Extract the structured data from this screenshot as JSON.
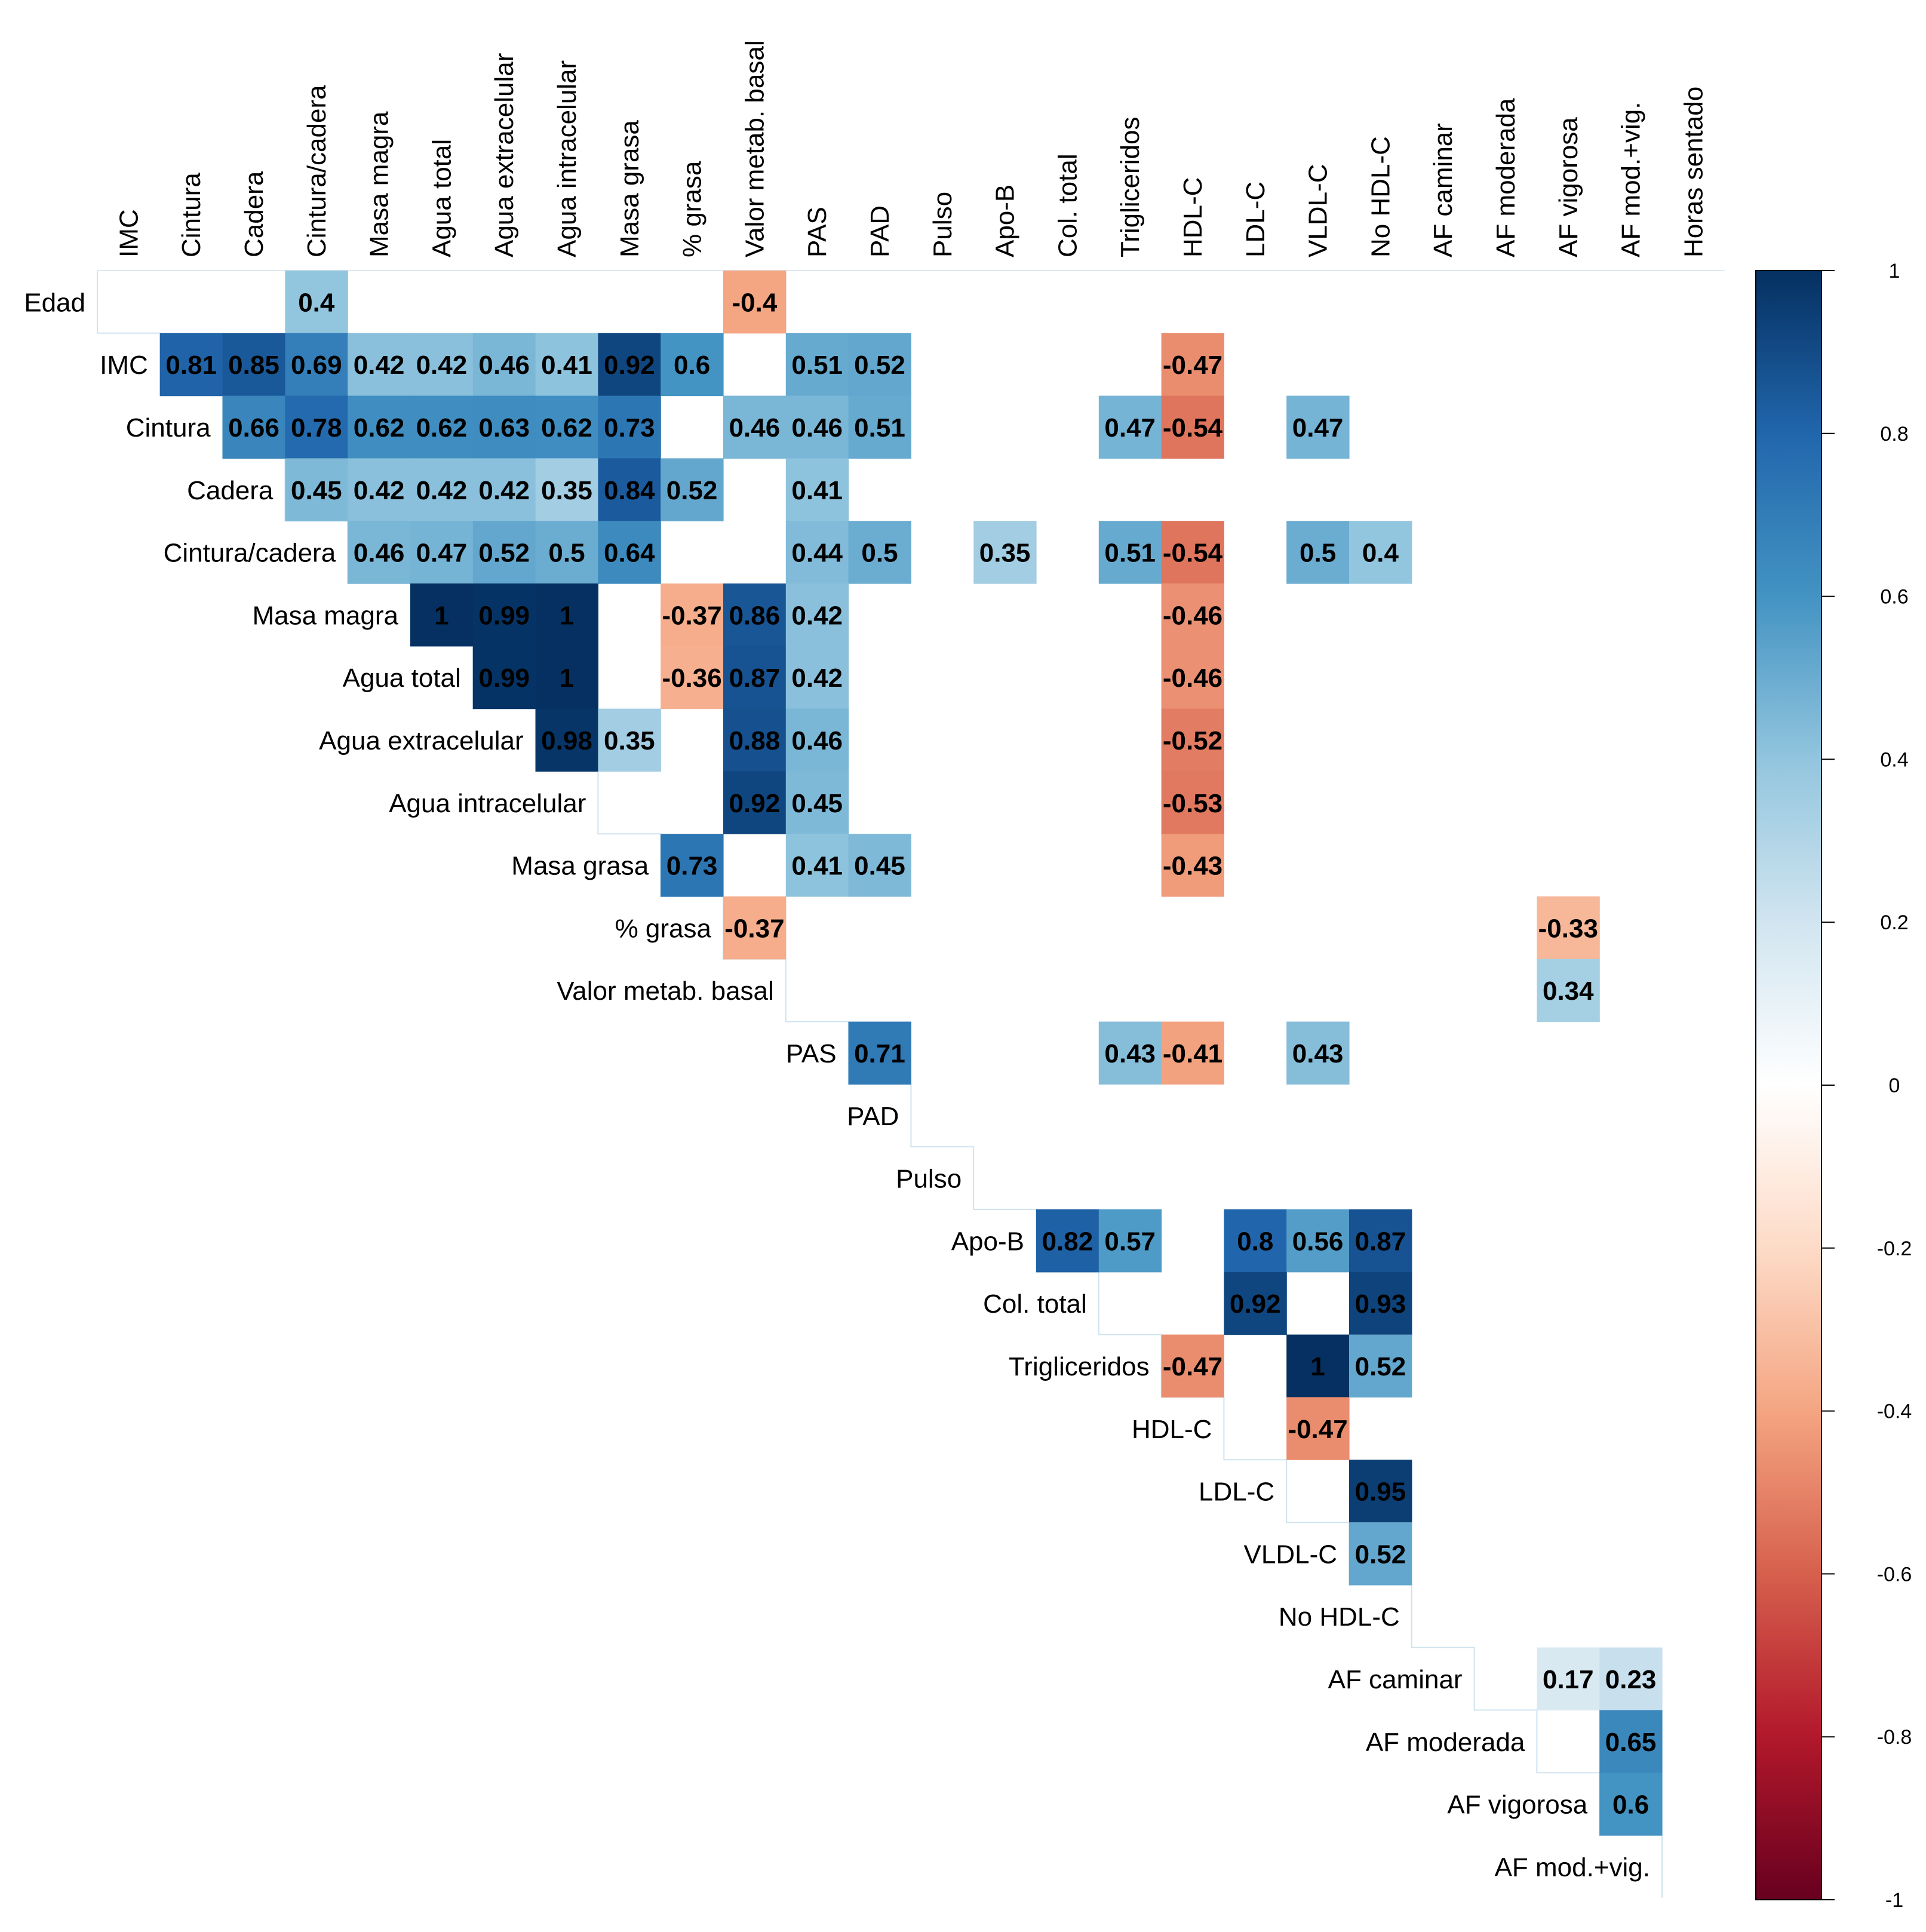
{
  "chart_data": {
    "type": "heatmap",
    "subtype": "correlation-matrix-upper-triangle",
    "title": "",
    "variables": [
      "Edad",
      "IMC",
      "Cintura",
      "Cadera",
      "Cintura/cadera",
      "Masa magra",
      "Agua total",
      "Agua extracelular",
      "Agua intracelular",
      "Masa grasa",
      "% grasa",
      "Valor metab. basal",
      "PAS",
      "PAD",
      "Pulso",
      "Apo-B",
      "Col. total",
      "Trigliceridos",
      "HDL-C",
      "LDL-C",
      "VLDL-C",
      "No HDL-C",
      "AF caminar",
      "AF moderada",
      "AF vigorosa",
      "AF mod.+vig.",
      "Horas sentado"
    ],
    "row_labels": [
      "Edad",
      "IMC",
      "Cintura",
      "Cadera",
      "Cintura/cadera",
      "Masa magra",
      "Agua total",
      "Agua extracelular",
      "Agua intracelular",
      "Masa grasa",
      "% grasa",
      "Valor metab. basal",
      "PAS",
      "PAD",
      "Pulso",
      "Apo-B",
      "Col. total",
      "Trigliceridos",
      "HDL-C",
      "LDL-C",
      "VLDL-C",
      "No HDL-C",
      "AF caminar",
      "AF moderada",
      "AF vigorosa",
      "AF mod.+vig."
    ],
    "column_labels": [
      "IMC",
      "Cintura",
      "Cadera",
      "Cintura/cadera",
      "Masa magra",
      "Agua total",
      "Agua extracelular",
      "Agua intracelular",
      "Masa grasa",
      "% grasa",
      "Valor metab. basal",
      "PAS",
      "PAD",
      "Pulso",
      "Apo-B",
      "Col. total",
      "Trigliceridos",
      "HDL-C",
      "LDL-C",
      "VLDL-C",
      "No HDL-C",
      "AF caminar",
      "AF moderada",
      "AF vigorosa",
      "AF mod.+vig.",
      "Horas sentado"
    ],
    "significant_correlations": [
      {
        "row": "Edad",
        "col": "Cintura/cadera",
        "r": 0.4,
        "label": "0.4"
      },
      {
        "row": "Edad",
        "col": "Valor metab. basal",
        "r": -0.4,
        "label": "-0.4"
      },
      {
        "row": "IMC",
        "col": "Cintura",
        "r": 0.81,
        "label": "0.81"
      },
      {
        "row": "IMC",
        "col": "Cadera",
        "r": 0.85,
        "label": "0.85"
      },
      {
        "row": "IMC",
        "col": "Cintura/cadera",
        "r": 0.69,
        "label": "0.69"
      },
      {
        "row": "IMC",
        "col": "Masa magra",
        "r": 0.42,
        "label": "0.42"
      },
      {
        "row": "IMC",
        "col": "Agua total",
        "r": 0.42,
        "label": "0.42"
      },
      {
        "row": "IMC",
        "col": "Agua extracelular",
        "r": 0.46,
        "label": "0.46"
      },
      {
        "row": "IMC",
        "col": "Agua intracelular",
        "r": 0.41,
        "label": "0.41"
      },
      {
        "row": "IMC",
        "col": "Masa grasa",
        "r": 0.92,
        "label": "0.92"
      },
      {
        "row": "IMC",
        "col": "% grasa",
        "r": 0.6,
        "label": "0.6"
      },
      {
        "row": "IMC",
        "col": "PAS",
        "r": 0.51,
        "label": "0.51"
      },
      {
        "row": "IMC",
        "col": "PAD",
        "r": 0.52,
        "label": "0.52"
      },
      {
        "row": "IMC",
        "col": "HDL-C",
        "r": -0.47,
        "label": "-0.47"
      },
      {
        "row": "Cintura",
        "col": "Cadera",
        "r": 0.66,
        "label": "0.66"
      },
      {
        "row": "Cintura",
        "col": "Cintura/cadera",
        "r": 0.78,
        "label": "0.78"
      },
      {
        "row": "Cintura",
        "col": "Masa magra",
        "r": 0.62,
        "label": "0.62"
      },
      {
        "row": "Cintura",
        "col": "Agua total",
        "r": 0.62,
        "label": "0.62"
      },
      {
        "row": "Cintura",
        "col": "Agua extracelular",
        "r": 0.63,
        "label": "0.63"
      },
      {
        "row": "Cintura",
        "col": "Agua intracelular",
        "r": 0.62,
        "label": "0.62"
      },
      {
        "row": "Cintura",
        "col": "Masa grasa",
        "r": 0.73,
        "label": "0.73"
      },
      {
        "row": "Cintura",
        "col": "Valor metab. basal",
        "r": 0.46,
        "label": "0.46"
      },
      {
        "row": "Cintura",
        "col": "PAS",
        "r": 0.46,
        "label": "0.46"
      },
      {
        "row": "Cintura",
        "col": "PAD",
        "r": 0.51,
        "label": "0.51"
      },
      {
        "row": "Cintura",
        "col": "Trigliceridos",
        "r": 0.47,
        "label": "0.47"
      },
      {
        "row": "Cintura",
        "col": "HDL-C",
        "r": -0.54,
        "label": "-0.54"
      },
      {
        "row": "Cintura",
        "col": "VLDL-C",
        "r": 0.47,
        "label": "0.47"
      },
      {
        "row": "Cadera",
        "col": "Cintura/cadera",
        "r": 0.45,
        "label": "0.45"
      },
      {
        "row": "Cadera",
        "col": "Masa magra",
        "r": 0.42,
        "label": "0.42"
      },
      {
        "row": "Cadera",
        "col": "Agua total",
        "r": 0.42,
        "label": "0.42"
      },
      {
        "row": "Cadera",
        "col": "Agua extracelular",
        "r": 0.42,
        "label": "0.42"
      },
      {
        "row": "Cadera",
        "col": "Agua intracelular",
        "r": 0.35,
        "label": "0.35"
      },
      {
        "row": "Cadera",
        "col": "Masa grasa",
        "r": 0.84,
        "label": "0.84"
      },
      {
        "row": "Cadera",
        "col": "% grasa",
        "r": 0.52,
        "label": "0.52"
      },
      {
        "row": "Cadera",
        "col": "PAS",
        "r": 0.41,
        "label": "0.41"
      },
      {
        "row": "Cintura/cadera",
        "col": "Masa magra",
        "r": 0.46,
        "label": "0.46"
      },
      {
        "row": "Cintura/cadera",
        "col": "Agua total",
        "r": 0.47,
        "label": "0.47"
      },
      {
        "row": "Cintura/cadera",
        "col": "Agua extracelular",
        "r": 0.52,
        "label": "0.52"
      },
      {
        "row": "Cintura/cadera",
        "col": "Agua intracelular",
        "r": 0.5,
        "label": "0.5"
      },
      {
        "row": "Cintura/cadera",
        "col": "Masa grasa",
        "r": 0.64,
        "label": "0.64"
      },
      {
        "row": "Cintura/cadera",
        "col": "PAS",
        "r": 0.44,
        "label": "0.44"
      },
      {
        "row": "Cintura/cadera",
        "col": "PAD",
        "r": 0.5,
        "label": "0.5"
      },
      {
        "row": "Cintura/cadera",
        "col": "Apo-B",
        "r": 0.35,
        "label": "0.35"
      },
      {
        "row": "Cintura/cadera",
        "col": "Trigliceridos",
        "r": 0.51,
        "label": "0.51"
      },
      {
        "row": "Cintura/cadera",
        "col": "HDL-C",
        "r": -0.54,
        "label": "-0.54"
      },
      {
        "row": "Cintura/cadera",
        "col": "VLDL-C",
        "r": 0.5,
        "label": "0.5"
      },
      {
        "row": "Cintura/cadera",
        "col": "No HDL-C",
        "r": 0.4,
        "label": "0.4"
      },
      {
        "row": "Masa magra",
        "col": "Agua total",
        "r": 1.0,
        "label": "1"
      },
      {
        "row": "Masa magra",
        "col": "Agua extracelular",
        "r": 0.99,
        "label": "0.99"
      },
      {
        "row": "Masa magra",
        "col": "Agua intracelular",
        "r": 1.0,
        "label": "1"
      },
      {
        "row": "Masa magra",
        "col": "% grasa",
        "r": -0.37,
        "label": "-0.37"
      },
      {
        "row": "Masa magra",
        "col": "Valor metab. basal",
        "r": 0.86,
        "label": "0.86"
      },
      {
        "row": "Masa magra",
        "col": "PAS",
        "r": 0.42,
        "label": "0.42"
      },
      {
        "row": "Masa magra",
        "col": "HDL-C",
        "r": -0.46,
        "label": "-0.46"
      },
      {
        "row": "Agua total",
        "col": "Agua extracelular",
        "r": 0.99,
        "label": "0.99"
      },
      {
        "row": "Agua total",
        "col": "Agua intracelular",
        "r": 1.0,
        "label": "1"
      },
      {
        "row": "Agua total",
        "col": "% grasa",
        "r": -0.36,
        "label": "-0.36"
      },
      {
        "row": "Agua total",
        "col": "Valor metab. basal",
        "r": 0.87,
        "label": "0.87"
      },
      {
        "row": "Agua total",
        "col": "PAS",
        "r": 0.42,
        "label": "0.42"
      },
      {
        "row": "Agua total",
        "col": "HDL-C",
        "r": -0.46,
        "label": "-0.46"
      },
      {
        "row": "Agua extracelular",
        "col": "Agua intracelular",
        "r": 0.98,
        "label": "0.98"
      },
      {
        "row": "Agua extracelular",
        "col": "Masa grasa",
        "r": 0.35,
        "label": "0.35"
      },
      {
        "row": "Agua extracelular",
        "col": "Valor metab. basal",
        "r": 0.88,
        "label": "0.88"
      },
      {
        "row": "Agua extracelular",
        "col": "PAS",
        "r": 0.46,
        "label": "0.46"
      },
      {
        "row": "Agua extracelular",
        "col": "HDL-C",
        "r": -0.52,
        "label": "-0.52"
      },
      {
        "row": "Agua intracelular",
        "col": "Valor metab. basal",
        "r": 0.92,
        "label": "0.92"
      },
      {
        "row": "Agua intracelular",
        "col": "PAS",
        "r": 0.45,
        "label": "0.45"
      },
      {
        "row": "Agua intracelular",
        "col": "HDL-C",
        "r": -0.53,
        "label": "-0.53"
      },
      {
        "row": "Masa grasa",
        "col": "% grasa",
        "r": 0.73,
        "label": "0.73"
      },
      {
        "row": "Masa grasa",
        "col": "PAS",
        "r": 0.41,
        "label": "0.41"
      },
      {
        "row": "Masa grasa",
        "col": "PAD",
        "r": 0.45,
        "label": "0.45"
      },
      {
        "row": "Masa grasa",
        "col": "HDL-C",
        "r": -0.43,
        "label": "-0.43"
      },
      {
        "row": "% grasa",
        "col": "Valor metab. basal",
        "r": -0.37,
        "label": "-0.37"
      },
      {
        "row": "% grasa",
        "col": "AF vigorosa",
        "r": -0.33,
        "label": "-0.33"
      },
      {
        "row": "Valor metab. basal",
        "col": "AF vigorosa",
        "r": 0.34,
        "label": "0.34"
      },
      {
        "row": "PAS",
        "col": "PAD",
        "r": 0.71,
        "label": "0.71"
      },
      {
        "row": "PAS",
        "col": "Trigliceridos",
        "r": 0.43,
        "label": "0.43"
      },
      {
        "row": "PAS",
        "col": "HDL-C",
        "r": -0.41,
        "label": "-0.41"
      },
      {
        "row": "PAS",
        "col": "VLDL-C",
        "r": 0.43,
        "label": "0.43"
      },
      {
        "row": "Apo-B",
        "col": "Col. total",
        "r": 0.82,
        "label": "0.82"
      },
      {
        "row": "Apo-B",
        "col": "Trigliceridos",
        "r": 0.57,
        "label": "0.57"
      },
      {
        "row": "Apo-B",
        "col": "LDL-C",
        "r": 0.8,
        "label": "0.8"
      },
      {
        "row": "Apo-B",
        "col": "VLDL-C",
        "r": 0.56,
        "label": "0.56"
      },
      {
        "row": "Apo-B",
        "col": "No HDL-C",
        "r": 0.87,
        "label": "0.87"
      },
      {
        "row": "Col. total",
        "col": "LDL-C",
        "r": 0.92,
        "label": "0.92"
      },
      {
        "row": "Col. total",
        "col": "No HDL-C",
        "r": 0.93,
        "label": "0.93"
      },
      {
        "row": "Trigliceridos",
        "col": "HDL-C",
        "r": -0.47,
        "label": "-0.47"
      },
      {
        "row": "Trigliceridos",
        "col": "VLDL-C",
        "r": 1.0,
        "label": "1"
      },
      {
        "row": "Trigliceridos",
        "col": "No HDL-C",
        "r": 0.52,
        "label": "0.52"
      },
      {
        "row": "HDL-C",
        "col": "VLDL-C",
        "r": -0.47,
        "label": "-0.47"
      },
      {
        "row": "LDL-C",
        "col": "No HDL-C",
        "r": 0.95,
        "label": "0.95"
      },
      {
        "row": "VLDL-C",
        "col": "No HDL-C",
        "r": 0.52,
        "label": "0.52"
      },
      {
        "row": "AF caminar",
        "col": "AF vigorosa",
        "r": 0.17,
        "label": "0.17"
      },
      {
        "row": "AF caminar",
        "col": "AF mod.+vig.",
        "r": 0.23,
        "label": "0.23"
      },
      {
        "row": "AF moderada",
        "col": "AF mod.+vig.",
        "r": 0.65,
        "label": "0.65"
      },
      {
        "row": "AF vigorosa",
        "col": "AF mod.+vig.",
        "r": 0.6,
        "label": "0.6"
      }
    ],
    "colorbar": {
      "range": [
        -1,
        1
      ],
      "ticks": [
        "1",
        "0.8",
        "0.6",
        "0.4",
        "0.2",
        "0",
        "-0.2",
        "-0.4",
        "-0.6",
        "-0.8",
        "-1"
      ],
      "palette": [
        "#67001F",
        "#B2182B",
        "#D6604D",
        "#F4A582",
        "#FDDBC7",
        "#FFFFFF",
        "#D1E5F0",
        "#92C5DE",
        "#4393C3",
        "#2166AC",
        "#053061"
      ]
    },
    "legend_position": "right",
    "xlabel": "",
    "ylabel": "",
    "grid": false
  }
}
